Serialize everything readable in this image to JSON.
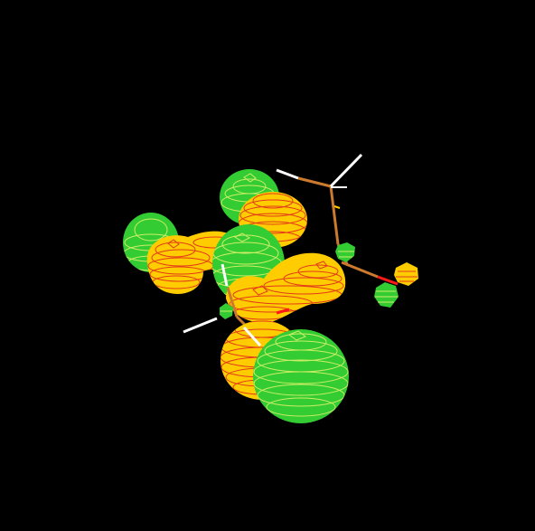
{
  "scene": {
    "background": "#000000",
    "lobe_colors": {
      "positive": "#33CC33",
      "negative": "#FFCC00",
      "contour_on_green": "#CCEE66",
      "contour_on_yellow": "#E23B1A"
    },
    "bond_colors": {
      "carbon": "#CC7A2E",
      "hydrogen": "#FFFFFF",
      "oxygen": "#FF1A1A"
    },
    "small_atom_colors": {
      "green": "#33CC33",
      "yellow": "#FFCC00"
    }
  }
}
